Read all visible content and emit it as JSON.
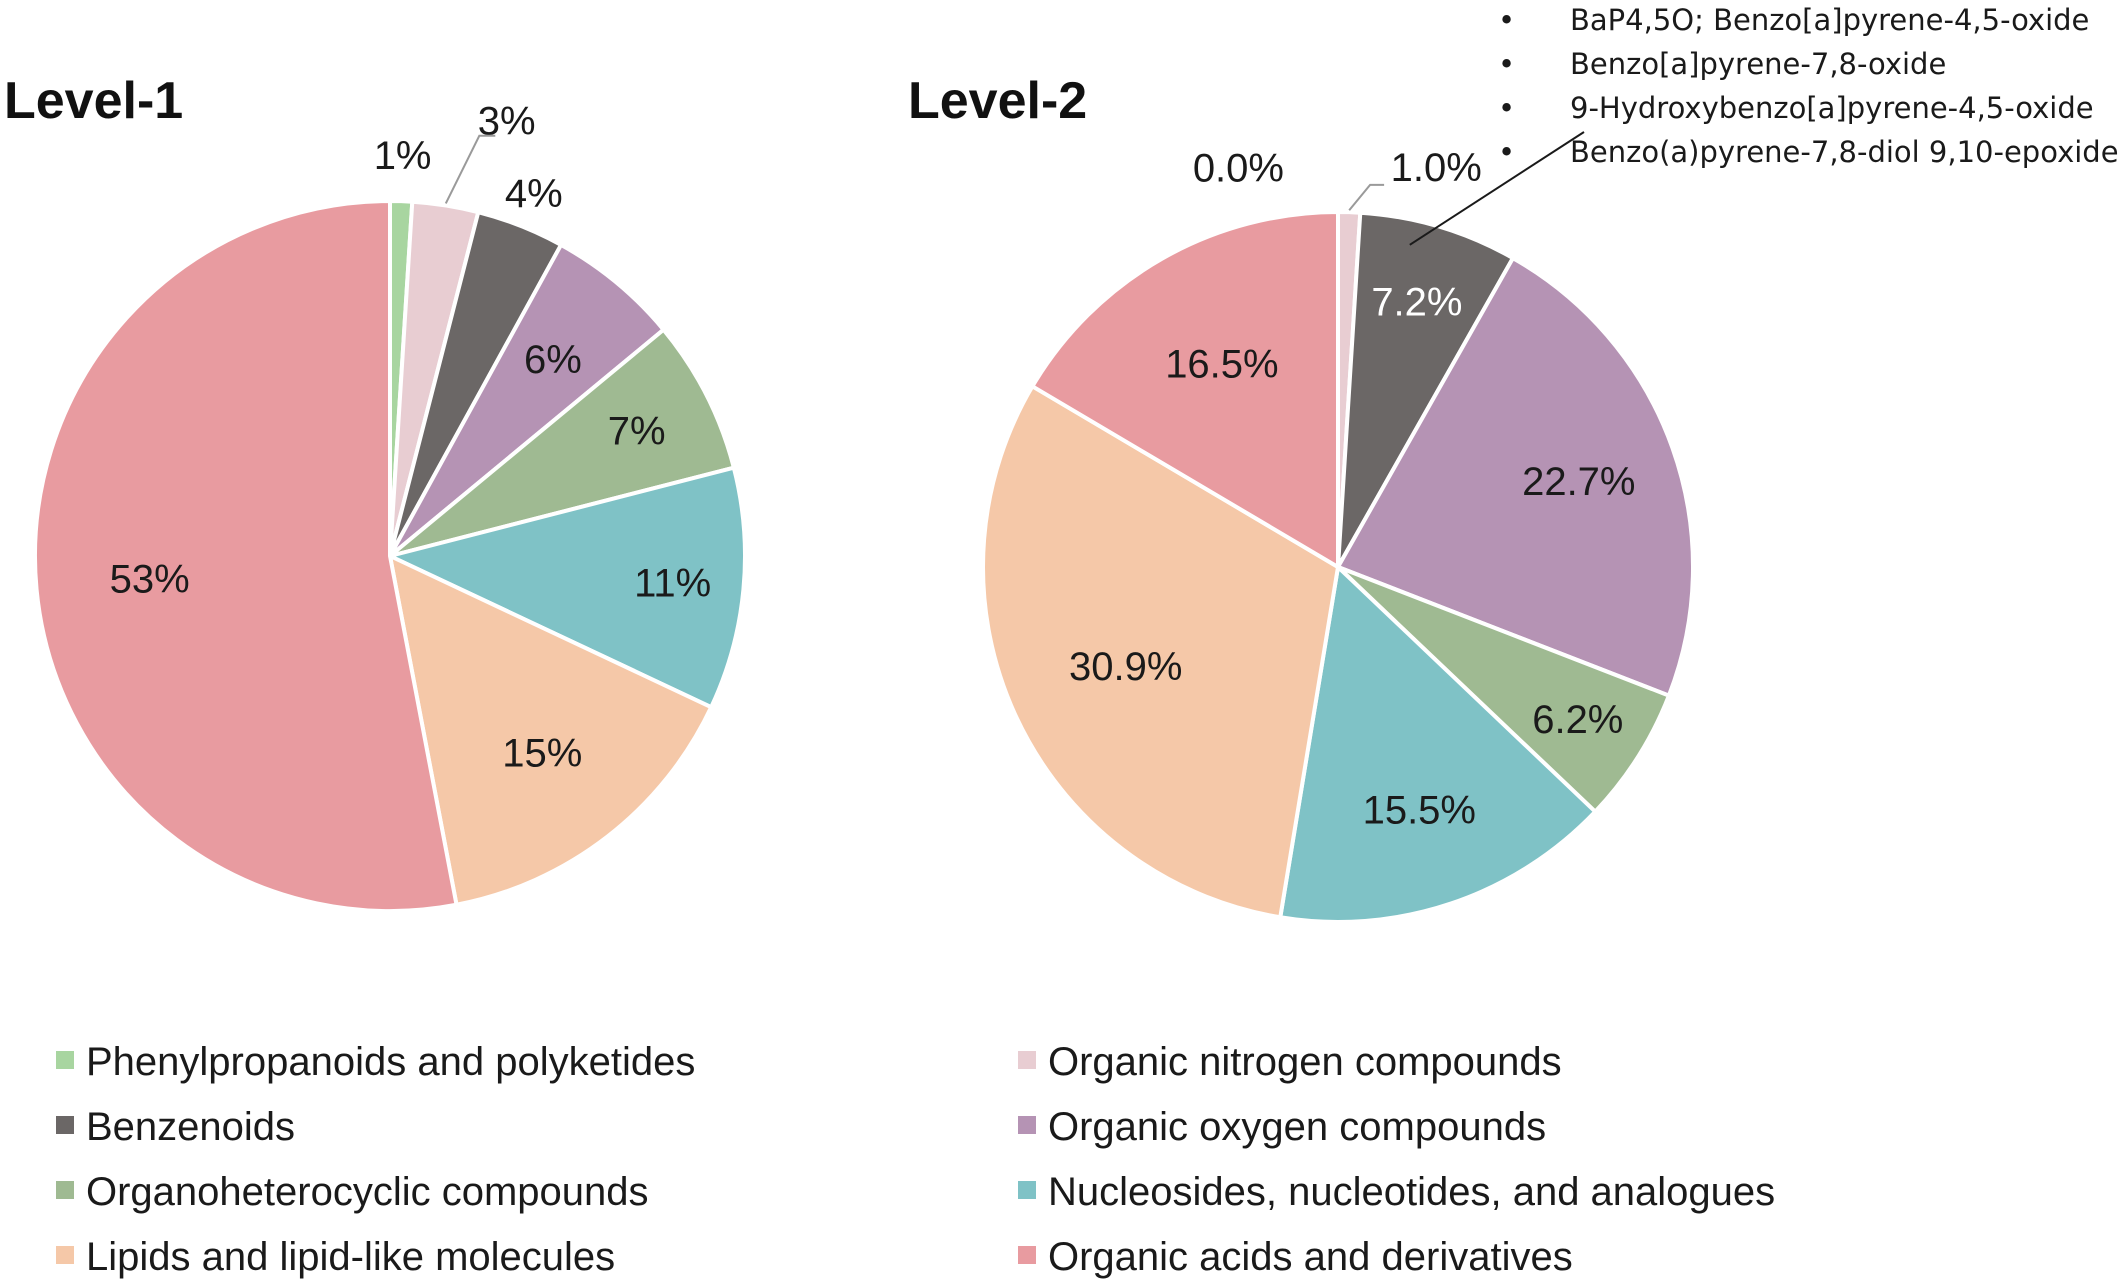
{
  "chart_data": [
    {
      "type": "pie",
      "title": "Level-1",
      "slices": [
        {
          "category": "Phenylpropanoids and polyketides",
          "value": 1,
          "label": "1%"
        },
        {
          "category": "Organic nitrogen compounds",
          "value": 3,
          "label": "3%"
        },
        {
          "category": "Benzenoids",
          "value": 4,
          "label": "4%"
        },
        {
          "category": "Organic oxygen compounds",
          "value": 6,
          "label": "6%"
        },
        {
          "category": "Organoheterocyclic compounds",
          "value": 7,
          "label": "7%"
        },
        {
          "category": "Nucleosides, nucleotides, and analogues",
          "value": 11,
          "label": "11%"
        },
        {
          "category": "Lipids and lipid-like molecules",
          "value": 15,
          "label": "15%"
        },
        {
          "category": "Organic acids and derivatives",
          "value": 53,
          "label": "53%"
        }
      ]
    },
    {
      "type": "pie",
      "title": "Level‑2",
      "slices": [
        {
          "category": "Phenylpropanoids and polyketides",
          "value": 0.0,
          "label": "0.0%"
        },
        {
          "category": "Organic nitrogen compounds",
          "value": 1.0,
          "label": "1.0%"
        },
        {
          "category": "Benzenoids",
          "value": 7.2,
          "label": "7.2%"
        },
        {
          "category": "Organic oxygen compounds",
          "value": 22.7,
          "label": "22.7%"
        },
        {
          "category": "Organoheterocyclic compounds",
          "value": 6.2,
          "label": "6.2%"
        },
        {
          "category": "Nucleosides, nucleotides, and analogues",
          "value": 15.5,
          "label": "15.5%"
        },
        {
          "category": "Lipids and lipid-like molecules",
          "value": 30.9,
          "label": "30.9%"
        },
        {
          "category": "Organic acids and derivatives",
          "value": 16.5,
          "label": "16.5%"
        }
      ],
      "annotation": {
        "points_to": "Benzenoids",
        "items": [
          "BaP4,5O; Benzo[a]pyrene-4,5-oxide",
          "Benzo[a]pyrene-7,8-oxide",
          "9-Hydroxybenzo[a]pyrene-4,5-oxide",
          "Benzo(a)pyrene-7,8-diol  9,10-epoxide"
        ]
      }
    }
  ],
  "legend": {
    "placement": "bottom",
    "items": [
      {
        "label": "Phenylpropanoids and polyketides",
        "color": "#a8d5a0"
      },
      {
        "label": "Organic nitrogen compounds",
        "color": "#e8cdd2"
      },
      {
        "label": "Benzenoids",
        "color": "#6b6766"
      },
      {
        "label": "Organic oxygen compounds",
        "color": "#b593b4"
      },
      {
        "label": "Organoheterocyclic compounds",
        "color": "#9fba92"
      },
      {
        "label": "Nucleosides, nucleotides, and analogues",
        "color": "#7fc2c6"
      },
      {
        "label": "Lipids and lipid-like molecules",
        "color": "#f5c8a8"
      },
      {
        "label": "Organic acids and derivatives",
        "color": "#e89ba0"
      }
    ]
  }
}
